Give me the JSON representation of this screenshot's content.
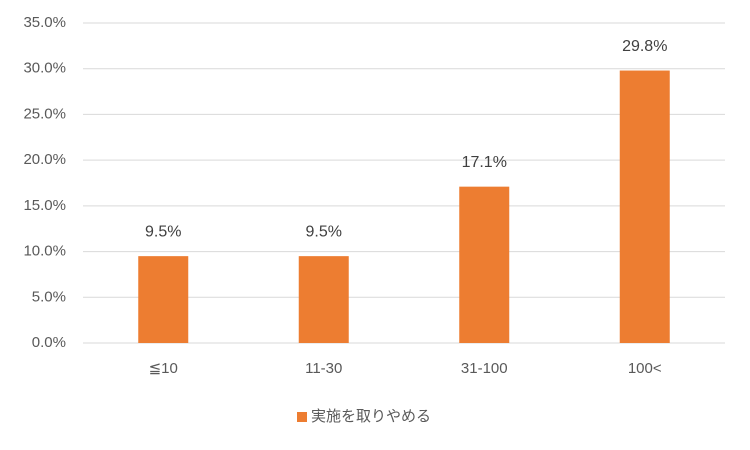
{
  "chart_data": {
    "type": "bar",
    "categories": [
      "≦10",
      "11-30",
      "31-100",
      "100<"
    ],
    "series": [
      {
        "name": "実施を取りやめる",
        "color": "#ed7d31",
        "values": [
          9.5,
          9.5,
          17.1,
          29.8
        ],
        "value_labels": [
          "9.5%",
          "9.5%",
          "17.1%",
          "29.8%"
        ]
      }
    ],
    "ylim": [
      0,
      35
    ],
    "yticks": [
      {
        "value": 0,
        "label": "0.0%"
      },
      {
        "value": 5,
        "label": "5.0%"
      },
      {
        "value": 10,
        "label": "10.0%"
      },
      {
        "value": 15,
        "label": "15.0%"
      },
      {
        "value": 20,
        "label": "20.0%"
      },
      {
        "value": 25,
        "label": "25.0%"
      },
      {
        "value": 30,
        "label": "30.0%"
      },
      {
        "value": 35,
        "label": "35.0%"
      }
    ],
    "grid": true,
    "legend": "bottom"
  }
}
